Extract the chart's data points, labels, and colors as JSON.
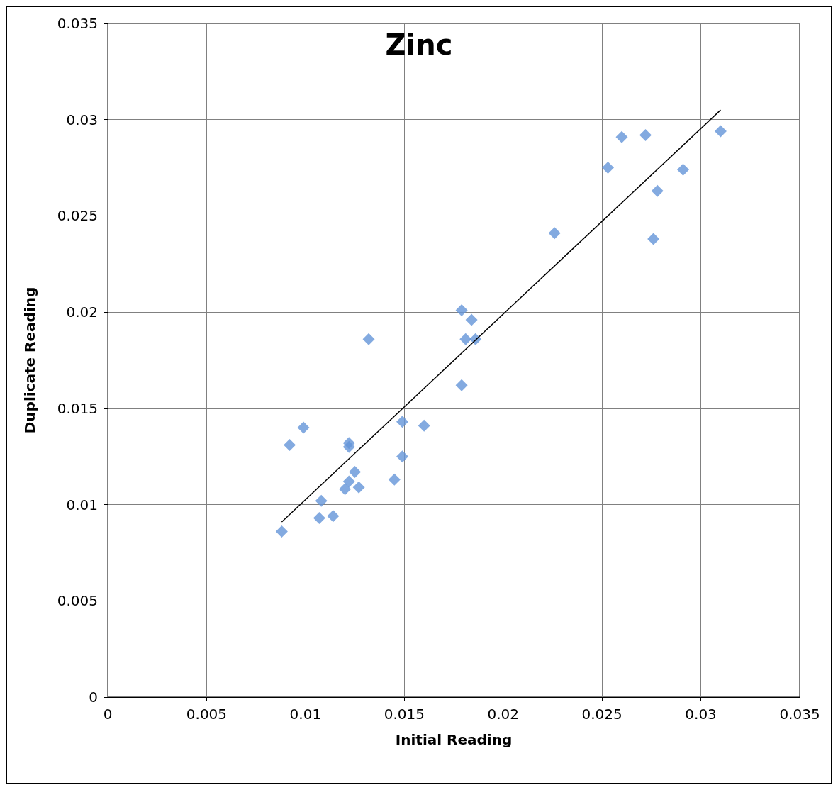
{
  "chart_data": {
    "type": "scatter",
    "title": "Zinc",
    "xlabel": "Initial Reading",
    "ylabel": "Duplicate Reading",
    "xlim": [
      0,
      0.035
    ],
    "ylim": [
      0,
      0.035
    ],
    "xticks": [
      0,
      0.005,
      0.01,
      0.015,
      0.02,
      0.025,
      0.03,
      0.035
    ],
    "yticks": [
      0,
      0.005,
      0.01,
      0.015,
      0.02,
      0.025,
      0.03,
      0.035
    ],
    "grid": true,
    "series": [
      {
        "marker": "diamond",
        "color": "#6495d8",
        "x": [
          0.0088,
          0.0092,
          0.0099,
          0.0108,
          0.0107,
          0.0114,
          0.012,
          0.0122,
          0.0122,
          0.0122,
          0.0125,
          0.0127,
          0.0132,
          0.0145,
          0.0149,
          0.0149,
          0.016,
          0.0179,
          0.0179,
          0.0184,
          0.0181,
          0.0186,
          0.0226,
          0.0253,
          0.026,
          0.0272,
          0.0278,
          0.0291,
          0.0276,
          0.031
        ],
        "values": [
          0.0086,
          0.0131,
          0.014,
          0.0102,
          0.0093,
          0.0094,
          0.0108,
          0.0112,
          0.0132,
          0.013,
          0.0117,
          0.0109,
          0.0186,
          0.0113,
          0.0125,
          0.0143,
          0.0141,
          0.0201,
          0.0162,
          0.0196,
          0.0186,
          0.0186,
          0.0241,
          0.0275,
          0.0291,
          0.0292,
          0.0263,
          0.0274,
          0.0238,
          0.0294
        ]
      },
      {
        "type": "line",
        "marker": "none",
        "color": "#000000",
        "x": [
          0.0088,
          0.031
        ],
        "values": [
          0.0091,
          0.0305
        ]
      }
    ]
  }
}
